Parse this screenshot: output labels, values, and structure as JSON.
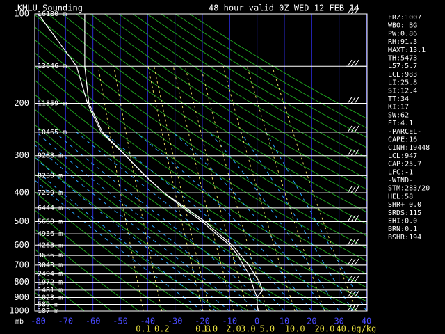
{
  "chart_data": {
    "type": "skewt",
    "title": "KMLU Sounding",
    "subtitle": "48 hour  valid 0Z WED 12 FEB 14",
    "y_label": "mb",
    "ylog": true,
    "ylim": [
      100,
      1000
    ],
    "yticks": [
      100,
      200,
      300,
      400,
      500,
      600,
      700,
      800,
      900,
      1000
    ],
    "xlim": [
      -80,
      40
    ],
    "xticks": [
      -80,
      -70,
      -60,
      -50,
      -40,
      -30,
      -20,
      -10,
      0,
      10,
      20,
      30,
      40
    ],
    "pressure": [
      100,
      150,
      200,
      250,
      300,
      350,
      400,
      450,
      500,
      550,
      600,
      650,
      700,
      750,
      800,
      850,
      900,
      950,
      1000
    ],
    "height_labels": [
      "16180 m",
      "13646 m",
      "11859 m",
      "10465 m",
      "9283 m",
      "8239 m",
      "7299 m",
      "6444 m",
      "5660 m",
      "4936 m",
      "4263 m",
      "3636 m",
      "3043 m",
      "2494 m",
      "1972 m",
      "1481 m",
      "1023 m",
      "589 m",
      "187 m"
    ],
    "series": [
      {
        "color": "#ffffff",
        "values": [
          -80,
          -66,
          -62,
          -57,
          -48,
          -41,
          -34,
          -26,
          -19,
          -14,
          -9,
          -6,
          -3,
          -1,
          1,
          2,
          0,
          0,
          0
        ]
      },
      {
        "color": "#ffffff",
        "values": [
          -63,
          -63,
          -61.5,
          -56.5,
          -48,
          -41,
          -34,
          -27,
          -20,
          -15,
          -10,
          -7,
          -5,
          -3,
          -2,
          -1,
          0,
          0,
          0.5
        ]
      }
    ],
    "mixing_ratios": [
      0.1,
      0.2,
      0.8,
      {
        "value": 1,
        "label": "1.0"
      },
      {
        "value": 2,
        "label": "2.0"
      },
      {
        "value": 3,
        "label": "3.0"
      },
      {
        "value": 5,
        "label": "5.0"
      },
      {
        "value": 10,
        "label": "10.0"
      },
      {
        "value": 20,
        "label": "20.0"
      },
      {
        "value": 40,
        "label": "40.0g/kg"
      }
    ],
    "indices": [
      "FRZ:1007",
      "WBO: BG",
      "PW:0.86",
      "RH:91.3",
      "MAXT:13.1",
      "TH:5473",
      "L57:5.7",
      "LCL:983",
      "LI:25.8",
      "SI:12.4",
      "TT:34",
      "KI:17",
      "SW:62",
      "EI:4.1",
      "-PARCEL-",
      "CAPE:16",
      "CINH:19448",
      "LCL:947",
      "CAP:25.7",
      "LFC:-1",
      "-WIND-",
      "STM:283/20",
      "HEL:58",
      "SHR+ 0.0",
      "SRDS:115",
      "EHI:0.0",
      "BRN:0.1",
      "BSHR:194"
    ]
  }
}
